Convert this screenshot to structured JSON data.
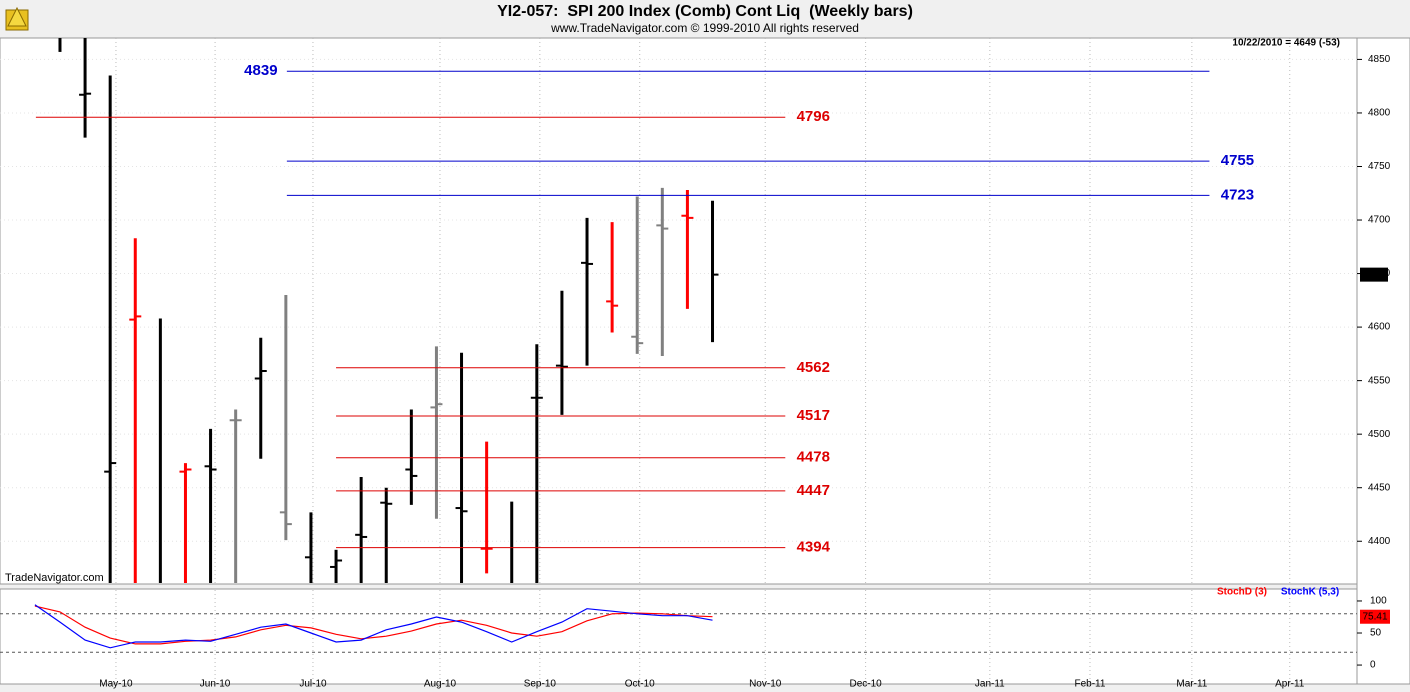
{
  "chart_data": [
    {
      "type": "ohlc",
      "title": "YI2-057:  SPI 200 Index (Comb) Cont Liq  (Weekly bars)",
      "subtitle": "www.TradeNavigator.com © 1999-2010 All rights reserved",
      "header": "10/22/2010 = 4649 (-53)",
      "watermark": "TradeNavigator.com",
      "x": [
        0,
        1,
        2,
        3,
        4,
        5,
        6,
        7,
        8,
        9,
        10,
        11,
        12,
        13,
        14,
        15,
        16,
        17,
        18,
        19,
        20,
        21,
        22,
        23,
        24,
        25,
        26,
        27
      ],
      "open": [
        null,
        null,
        4817,
        4465,
        4607,
        null,
        4465,
        4470,
        4513,
        4552,
        4427,
        4385,
        4376,
        4406,
        4436,
        4467,
        4525,
        4431,
        4393,
        null,
        4534,
        4564,
        4660,
        4624,
        4591,
        4695,
        4704,
        null
      ],
      "high": [
        null,
        4870,
        4870,
        4835,
        4683,
        4608,
        4473,
        4505,
        4523,
        4590,
        4630,
        4427,
        4392,
        4460,
        4450,
        4523,
        4582,
        4576,
        4493,
        4437,
        4584,
        4634,
        4702,
        4698,
        4722,
        4730,
        4728,
        4718
      ],
      "low": [
        null,
        4857,
        4777,
        4361,
        4361,
        4361,
        4361,
        4361,
        4361,
        4477,
        4401,
        4361,
        4361,
        4361,
        4361,
        4434,
        4421,
        4361,
        4370,
        4361,
        4361,
        4518,
        4564,
        4595,
        4575,
        4573,
        4617,
        4586
      ],
      "close": [
        null,
        null,
        4818,
        4473,
        4610,
        null,
        4467,
        4467,
        4513,
        4559,
        4416,
        null,
        4382,
        4404,
        4435,
        4461,
        4528,
        4428,
        4393,
        null,
        4534,
        4563,
        4659,
        4620,
        4585,
        4692,
        4702,
        4649
      ],
      "colors": [
        "#000000",
        "#000000",
        "#000000",
        "#000000",
        "#ff0000",
        "#000000",
        "#ff0000",
        "#000000",
        "#808080",
        "#000000",
        "#808080",
        "#000000",
        "#000000",
        "#000000",
        "#000000",
        "#000000",
        "#808080",
        "#000000",
        "#ff0000",
        "#000000",
        "#000000",
        "#000000",
        "#000000",
        "#ff0000",
        "#808080",
        "#808080",
        "#ff0000",
        "#000000"
      ],
      "xlim": [
        -1.39,
        52.6
      ],
      "xticks": [
        {
          "value": 3.23,
          "label": "May-10"
        },
        {
          "value": 7.18,
          "label": "Jun-10"
        },
        {
          "value": 11.08,
          "label": "Jul-10"
        },
        {
          "value": 16.14,
          "label": "Aug-10"
        },
        {
          "value": 20.12,
          "label": "Sep-10"
        },
        {
          "value": 24.1,
          "label": "Oct-10"
        },
        {
          "value": 29.1,
          "label": "Nov-10"
        },
        {
          "value": 33.1,
          "label": "Dec-10"
        },
        {
          "value": 38.05,
          "label": "Jan-11"
        },
        {
          "value": 42.04,
          "label": "Feb-11"
        },
        {
          "value": 46.1,
          "label": "Mar-11"
        },
        {
          "value": 50.0,
          "label": "Apr-11"
        }
      ],
      "ylim": [
        4361,
        4870
      ],
      "yticks": [
        4400,
        4450,
        4500,
        4550,
        4600,
        4650,
        4700,
        4750,
        4800,
        4850
      ],
      "grid": true,
      "levels": [
        {
          "value": 4839,
          "color": "#0000cc",
          "from": 10.04,
          "to": 46.8,
          "label_side": "left"
        },
        {
          "value": 4796,
          "color": "#dd0000",
          "from": 0.04,
          "to": 29.9,
          "label_side": "right"
        },
        {
          "value": 4755,
          "color": "#0000cc",
          "from": 10.04,
          "to": 46.8,
          "label_side": "right"
        },
        {
          "value": 4723,
          "color": "#0000cc",
          "from": 10.04,
          "to": 46.8,
          "label_side": "right"
        },
        {
          "value": 4562,
          "color": "#dd0000",
          "from": 12.0,
          "to": 29.9,
          "label_side": "right"
        },
        {
          "value": 4517,
          "color": "#dd0000",
          "from": 12.0,
          "to": 29.9,
          "label_side": "right"
        },
        {
          "value": 4478,
          "color": "#dd0000",
          "from": 12.0,
          "to": 29.9,
          "label_side": "right"
        },
        {
          "value": 4447,
          "color": "#dd0000",
          "from": 12.0,
          "to": 29.9,
          "label_side": "right"
        },
        {
          "value": 4394,
          "color": "#dd0000",
          "from": 12.0,
          "to": 29.9,
          "label_side": "right"
        }
      ]
    },
    {
      "type": "line",
      "series": [
        {
          "name": "StochD (3)",
          "color": "#ff0000",
          "values": [
            92,
            83,
            59,
            42,
            33,
            33,
            37,
            39,
            44,
            55,
            62,
            58,
            48,
            41,
            45,
            53,
            64,
            70,
            62,
            50,
            45,
            52,
            69,
            80,
            81,
            80,
            77,
            75.41
          ]
        },
        {
          "name": "StochK (5,3)",
          "color": "#0000ff",
          "values": [
            94,
            67,
            39,
            27,
            36,
            36,
            39,
            37,
            48,
            59,
            64,
            50,
            36,
            39,
            55,
            64,
            75,
            67,
            52,
            36,
            52,
            67,
            88,
            84,
            80,
            77,
            77,
            70
          ]
        }
      ],
      "ylim": [
        -28,
        114
      ],
      "yticks": [
        0,
        50,
        100
      ],
      "guides": [
        20,
        80
      ]
    }
  ]
}
